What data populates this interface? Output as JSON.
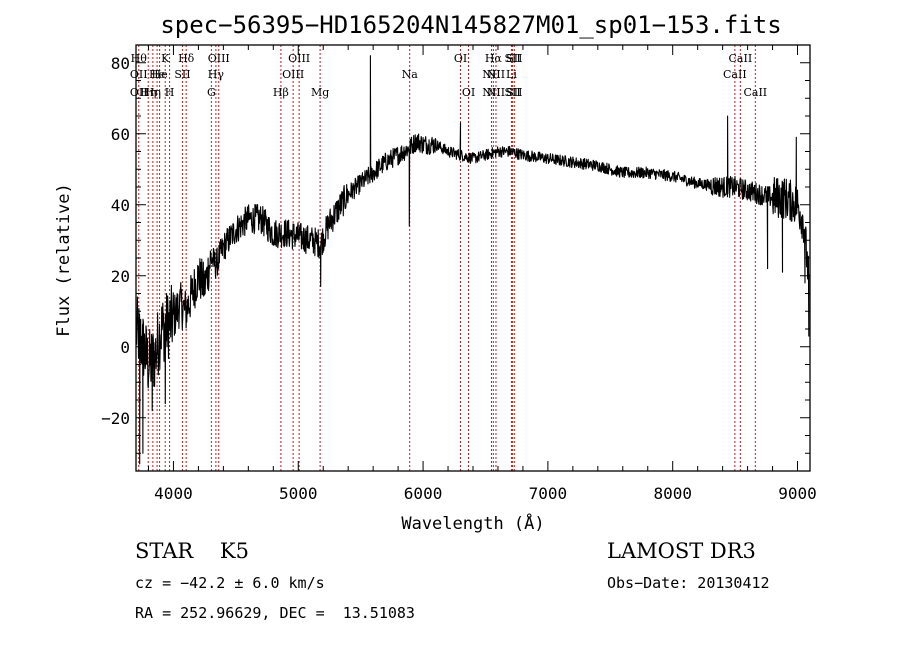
{
  "chart_data": {
    "type": "line",
    "title": "spec−56395−HD165204N145827M01_sp01−153.fits",
    "xlabel": "Wavelength (Å)",
    "ylabel": "Flux (relative)",
    "xlim": [
      3700,
      9100
    ],
    "ylim": [
      -35,
      85
    ],
    "xticks": [
      4000,
      5000,
      6000,
      7000,
      8000,
      9000
    ],
    "xtick_labels": [
      "4000",
      "5000",
      "6000",
      "7000",
      "8000",
      "9000"
    ],
    "yticks": [
      -20,
      0,
      20,
      40,
      60,
      80
    ],
    "ytick_labels": [
      "−20",
      "0",
      "20",
      "40",
      "60",
      "80"
    ],
    "line_color": "#000000",
    "marker_color": "#b22222",
    "anchors": {
      "x": [
        3700,
        3760,
        3800,
        3850,
        3900,
        3950,
        4000,
        4050,
        4100,
        4150,
        4200,
        4250,
        4300,
        4340,
        4400,
        4500,
        4600,
        4700,
        4800,
        4900,
        5000,
        5100,
        5180,
        5250,
        5400,
        5500,
        5600,
        5700,
        5800,
        5890,
        5950,
        6000,
        6100,
        6200,
        6300,
        6400,
        6500,
        6600,
        6700,
        6800,
        7000,
        7200,
        7400,
        7600,
        7800,
        8000,
        8200,
        8400,
        8500,
        8600,
        8700,
        8800,
        8900,
        8950,
        9000,
        9050,
        9100
      ],
      "y": [
        5,
        0,
        -5,
        -3,
        5,
        6,
        8,
        12,
        10,
        15,
        20,
        17,
        25,
        23,
        28,
        33,
        36,
        36,
        32,
        32,
        31,
        30,
        29,
        35,
        43,
        46,
        49,
        52,
        54,
        56,
        58,
        57,
        57,
        55,
        54,
        53,
        54,
        55,
        55,
        54,
        53,
        52,
        51,
        49,
        49,
        48,
        46,
        45,
        45,
        44,
        43,
        42,
        42,
        41,
        40,
        35,
        15
      ]
    },
    "features": [
      {
        "x": 5578,
        "y": 82
      },
      {
        "x": 5890,
        "y": 34
      },
      {
        "x": 6300,
        "y": 63
      },
      {
        "x": 8440,
        "y": 65
      },
      {
        "x": 8760,
        "y": 22
      },
      {
        "x": 8880,
        "y": 21
      },
      {
        "x": 8990,
        "y": 59
      },
      {
        "x": 9060,
        "y": 18
      },
      {
        "x": 9090,
        "y": 3
      },
      {
        "x": 3730,
        "y": -33
      },
      {
        "x": 3755,
        "y": -30
      },
      {
        "x": 3830,
        "y": -18
      },
      {
        "x": 3935,
        "y": -16
      },
      {
        "x": 5180,
        "y": 17
      }
    ],
    "lines": [
      {
        "w": 3722,
        "labels": [
          "Hθ",
          "OII",
          "OII"
        ],
        "tiers": [
          0,
          1,
          2
        ]
      },
      {
        "w": 3798,
        "labels": [
          "Hη"
        ],
        "tiers": [
          2
        ]
      },
      {
        "w": 3835,
        "labels": [
          "Hη"
        ],
        "tiers": [
          2
        ]
      },
      {
        "w": 3869,
        "labels": [
          "He"
        ],
        "tiers": [
          1
        ]
      },
      {
        "w": 3889,
        "labels": [
          "He"
        ],
        "tiers": [
          1
        ]
      },
      {
        "w": 3934,
        "labels": [
          "K"
        ],
        "tiers": [
          0
        ]
      },
      {
        "w": 3969,
        "labels": [
          "H"
        ],
        "tiers": [
          2
        ]
      },
      {
        "w": 4072,
        "labels": [
          "SII"
        ],
        "tiers": [
          1
        ]
      },
      {
        "w": 4102,
        "labels": [
          "Hδ"
        ],
        "tiers": [
          0
        ]
      },
      {
        "w": 4304,
        "labels": [
          "G"
        ],
        "tiers": [
          2
        ]
      },
      {
        "w": 4340,
        "labels": [
          "Hγ"
        ],
        "tiers": [
          1
        ]
      },
      {
        "w": 4363,
        "labels": [
          "OIII"
        ],
        "tiers": [
          0
        ]
      },
      {
        "w": 4861,
        "labels": [
          "Hβ"
        ],
        "tiers": [
          2
        ]
      },
      {
        "w": 4959,
        "labels": [
          "OIII"
        ],
        "tiers": [
          1
        ]
      },
      {
        "w": 5007,
        "labels": [
          "OIII"
        ],
        "tiers": [
          0
        ]
      },
      {
        "w": 5175,
        "labels": [
          "Mg"
        ],
        "tiers": [
          2
        ]
      },
      {
        "w": 5893,
        "labels": [
          "Na"
        ],
        "tiers": [
          1
        ]
      },
      {
        "w": 6300,
        "labels": [
          "OI"
        ],
        "tiers": [
          0
        ]
      },
      {
        "w": 6364,
        "labels": [
          "OI"
        ],
        "tiers": [
          2
        ]
      },
      {
        "w": 6548,
        "labels": [
          "NII"
        ],
        "tiers": [
          1,
          2
        ]
      },
      {
        "w": 6563,
        "labels": [
          "Hα"
        ],
        "tiers": [
          0
        ]
      },
      {
        "w": 6584,
        "labels": [
          "NII"
        ],
        "tiers": [
          1,
          2
        ]
      },
      {
        "w": 6708,
        "labels": [
          "Li"
        ],
        "tiers": [
          1
        ]
      },
      {
        "w": 6717,
        "labels": [
          "SII"
        ],
        "tiers": [
          0,
          2
        ]
      },
      {
        "w": 6731,
        "labels": [
          "SII"
        ],
        "tiers": [
          0,
          2
        ]
      },
      {
        "w": 8498,
        "labels": [
          "CaII"
        ],
        "tiers": [
          1
        ]
      },
      {
        "w": 8542,
        "labels": [
          "CaII"
        ],
        "tiers": [
          0
        ]
      },
      {
        "w": 8662,
        "labels": [
          "CaII"
        ],
        "tiers": [
          2
        ]
      }
    ]
  },
  "info": {
    "class_text": "STAR    K5",
    "survey": "LAMOST DR3",
    "cz": "cz = −42.2 ± 6.0 km/s",
    "obs_date": "Obs−Date: 20130412",
    "radec": "RA = 252.96629, DEC =  13.51083"
  }
}
